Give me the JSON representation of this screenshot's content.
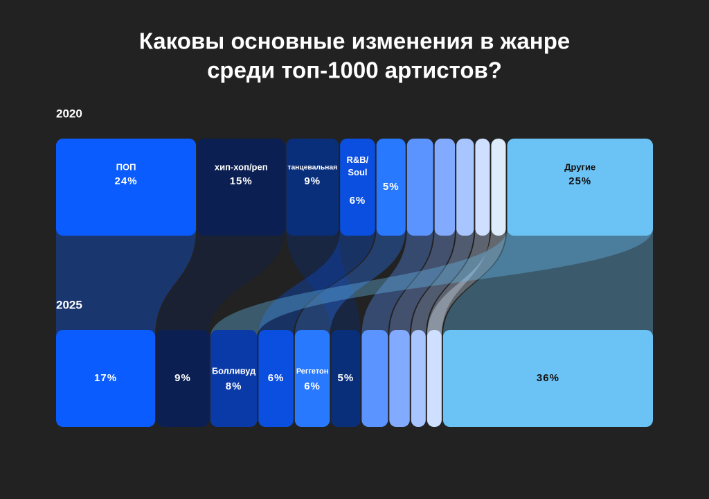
{
  "chart_data": {
    "type": "sankey",
    "title": [
      "Каковы основные изменения в жанре",
      "среди топ-1000 артистов?"
    ],
    "rows": [
      {
        "label": "2020",
        "names": [
          "ПОП",
          "хип-хоп/реп",
          "танцевальная",
          "R&B/Soul",
          null,
          null,
          null,
          null,
          null,
          null,
          "Другие"
        ],
        "values": [
          24,
          15,
          9,
          6,
          5,
          4.5,
          3.5,
          3,
          2.5,
          2.5,
          25
        ],
        "value_labels": [
          "24%",
          "15%",
          "9%",
          "6%",
          "5%",
          null,
          null,
          null,
          null,
          null,
          "25%"
        ],
        "colors": [
          "#0a5cff",
          "#0b1f52",
          "#0a2f7a",
          "#0a4fe0",
          "#2979ff",
          "#5b94ff",
          "#82aaff",
          "#a9c5ff",
          "#cfdfff",
          "#dcecfb",
          "#6bc3f5"
        ]
      },
      {
        "label": "2025",
        "names": [
          null,
          null,
          "Болливуд",
          null,
          "Реггетон",
          null,
          null,
          null,
          null,
          null,
          null
        ],
        "values": [
          17,
          9,
          8,
          6,
          6,
          5,
          4.5,
          3.5,
          2.5,
          2.5,
          36
        ],
        "value_labels": [
          "17%",
          "9%",
          "8%",
          "6%",
          "6%",
          "5%",
          null,
          null,
          null,
          null,
          "36%"
        ],
        "colors": [
          "#0a5cff",
          "#0b1f52",
          "#0a3aa8",
          "#0a4fe0",
          "#2979ff",
          "#0a2f7a",
          "#5b94ff",
          "#82aaff",
          "#a9c5ff",
          "#cfdfff",
          "#6bc3f5"
        ]
      }
    ],
    "links": [
      [
        0,
        0
      ],
      [
        1,
        1
      ],
      [
        2,
        5
      ],
      [
        3,
        3
      ],
      [
        4,
        4
      ],
      [
        5,
        6
      ],
      [
        6,
        7
      ],
      [
        7,
        8
      ],
      [
        8,
        9
      ],
      [
        9,
        9
      ],
      [
        10,
        10
      ],
      [
        10,
        2
      ]
    ]
  }
}
